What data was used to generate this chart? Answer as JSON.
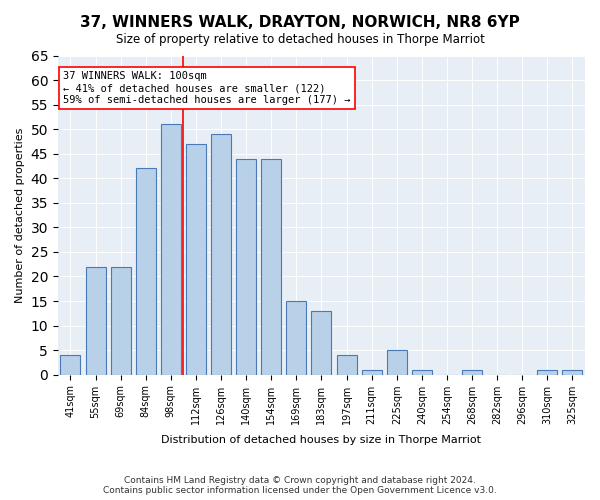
{
  "title": "37, WINNERS WALK, DRAYTON, NORWICH, NR8 6YP",
  "subtitle": "Size of property relative to detached houses in Thorpe Marriot",
  "xlabel": "Distribution of detached houses by size in Thorpe Marriot",
  "ylabel": "Number of detached properties",
  "categories": [
    "41sqm",
    "55sqm",
    "69sqm",
    "84sqm",
    "98sqm",
    "112sqm",
    "126sqm",
    "140sqm",
    "154sqm",
    "169sqm",
    "183sqm",
    "197sqm",
    "211sqm",
    "225sqm",
    "240sqm",
    "254sqm",
    "268sqm",
    "282sqm",
    "296sqm",
    "310sqm",
    "325sqm"
  ],
  "values": [
    4,
    22,
    22,
    42,
    51,
    47,
    49,
    44,
    44,
    15,
    13,
    4,
    1,
    5,
    1,
    0,
    1,
    0,
    0,
    1,
    1
  ],
  "bar_color": "#b8d0e8",
  "bar_edge_color": "#4a7ab5",
  "background_color": "#e8eef5",
  "property_size": 100,
  "property_label": "37 WINNERS WALK: 100sqm",
  "annotation_line1": "← 41% of detached houses are smaller (122)",
  "annotation_line2": "59% of semi-detached houses are larger (177) →",
  "vline_x": 4.5,
  "ylim": [
    0,
    65
  ],
  "yticks": [
    0,
    5,
    10,
    15,
    20,
    25,
    30,
    35,
    40,
    45,
    50,
    55,
    60,
    65
  ],
  "footer1": "Contains HM Land Registry data © Crown copyright and database right 2024.",
  "footer2": "Contains public sector information licensed under the Open Government Licence v3.0."
}
